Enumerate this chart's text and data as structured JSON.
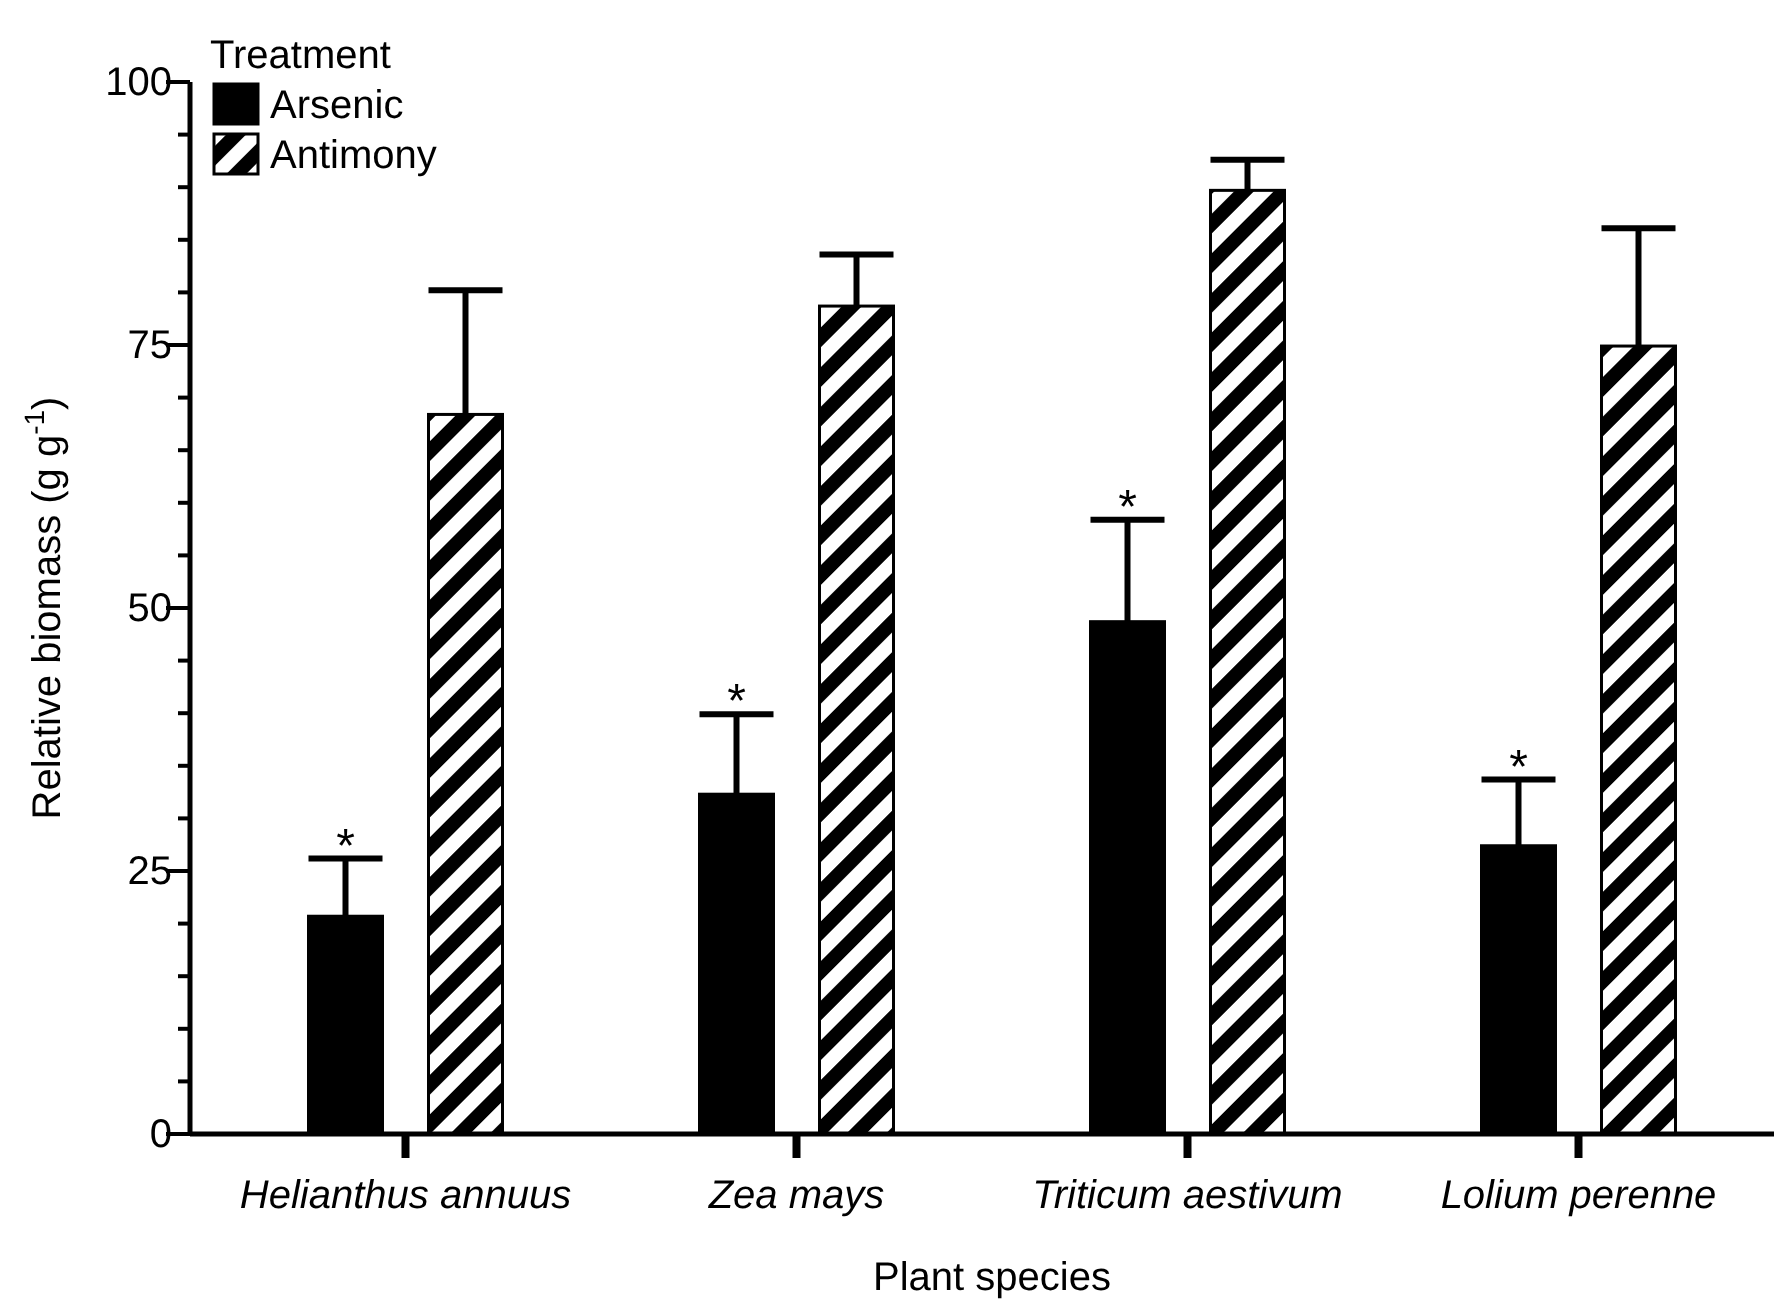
{
  "chart_data": {
    "type": "bar",
    "xlabel": "Plant species",
    "ylabel": "Relative biomass (g g$^{-1}$)",
    "legend_title": "Treatment",
    "legend": "top left",
    "categories": [
      "Helianthus annuus",
      "Zea mays",
      "Triticum aestivum",
      "Lolium perenne"
    ],
    "series": [
      {
        "name": "Arsenic",
        "color": "#000000",
        "values": [
          20.7,
          32.3,
          48.7,
          27.4
        ],
        "errors": [
          5.5,
          7.6,
          9.7,
          6.3
        ]
      },
      {
        "name": "Antimony",
        "color": "#000000",
        "values": [
          68.4,
          78.7,
          89.7,
          74.9
        ],
        "errors": [
          11.8,
          4.9,
          2.9,
          11.2
        ]
      }
    ],
    "ylim": [
      0,
      100
    ],
    "yticks": [
      0,
      {
        "value": 5,
        "label": null
      },
      {
        "value": 10,
        "label": null
      },
      {
        "value": 15,
        "label": null
      },
      {
        "value": 20,
        "label": null
      },
      25,
      {
        "value": 30,
        "label": null
      },
      {
        "value": 35,
        "label": null
      },
      {
        "value": 40,
        "label": null
      },
      {
        "value": 45,
        "label": null
      },
      50,
      {
        "value": 55,
        "label": null
      },
      {
        "value": 60,
        "label": null
      },
      {
        "value": 65,
        "label": null
      },
      {
        "value": 70,
        "label": null
      },
      75,
      {
        "value": 80,
        "label": null
      },
      {
        "value": 85,
        "label": null
      },
      {
        "value": 90,
        "label": null
      },
      {
        "value": 95,
        "label": null
      },
      100
    ],
    "grid": false,
    "annotations": [
      "*",
      "*",
      "*",
      "*"
    ]
  }
}
